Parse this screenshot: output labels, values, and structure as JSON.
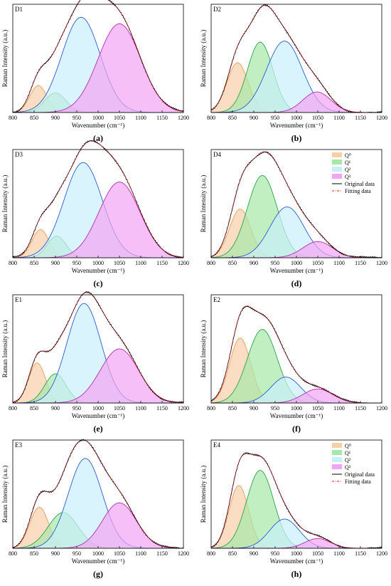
{
  "legend": {
    "items": [
      {
        "key": "q0",
        "label": "Q⁰",
        "fill": "#f8cfa8",
        "stroke": "#e5a05b"
      },
      {
        "key": "q1",
        "label": "Q¹",
        "fill": "#a6e8a8",
        "stroke": "#2ca24a"
      },
      {
        "key": "q2",
        "label": "Q²",
        "fill": "#c9effb",
        "stroke": "#2a5ad0"
      },
      {
        "key": "q3",
        "label": "Q³",
        "fill": "#f4a4f4",
        "stroke": "#b030b0"
      }
    ],
    "original_label": "Original data",
    "fitting_label": "Fitting data"
  },
  "colors": {
    "original": "#000000",
    "fitting": "#d62020"
  },
  "chart_data": [
    {
      "type": "area",
      "name": "D1",
      "caption": "(a)",
      "xlabel": "Wavenumber (cm⁻¹)",
      "ylabel": "Raman Intensity (a.u.)",
      "xlim": [
        800,
        1200
      ],
      "xticks": [
        800,
        850,
        900,
        950,
        1000,
        1050,
        1100,
        1150,
        1200
      ],
      "peaks": [
        {
          "component": "q0",
          "center": 860,
          "width": 20,
          "height": 0.25
        },
        {
          "component": "q1",
          "center": 900,
          "width": 25,
          "height": 0.18
        },
        {
          "component": "q2",
          "center": 960,
          "width": 45,
          "height": 0.88
        },
        {
          "component": "q3",
          "center": 1050,
          "width": 50,
          "height": 0.82
        }
      ]
    },
    {
      "type": "area",
      "name": "D2",
      "caption": "(b)",
      "xlabel": "Wavenumber (cm⁻¹)",
      "ylabel": "Raman Intensity (a.u.)",
      "xlim": [
        800,
        1200
      ],
      "xticks": [
        800,
        850,
        900,
        950,
        1000,
        1050,
        1100,
        1150,
        1200
      ],
      "peaks": [
        {
          "component": "q0",
          "center": 862,
          "width": 25,
          "height": 0.46
        },
        {
          "component": "q1",
          "center": 915,
          "width": 30,
          "height": 0.65
        },
        {
          "component": "q2",
          "center": 972,
          "width": 42,
          "height": 0.66
        },
        {
          "component": "q3",
          "center": 1048,
          "width": 33,
          "height": 0.19
        }
      ]
    },
    {
      "type": "area",
      "name": "D3",
      "caption": "(c)",
      "xlabel": "Wavenumber (cm⁻¹)",
      "ylabel": "Raman Intensity (a.u.)",
      "xlim": [
        800,
        1200
      ],
      "xticks": [
        800,
        850,
        900,
        950,
        1000,
        1050,
        1100,
        1150,
        1200
      ],
      "peaks": [
        {
          "component": "q0",
          "center": 865,
          "width": 20,
          "height": 0.26
        },
        {
          "component": "q1",
          "center": 903,
          "width": 22,
          "height": 0.2
        },
        {
          "component": "q2",
          "center": 965,
          "width": 45,
          "height": 0.88
        },
        {
          "component": "q3",
          "center": 1050,
          "width": 48,
          "height": 0.7
        }
      ]
    },
    {
      "type": "area",
      "name": "D4",
      "caption": "(d)",
      "xlabel": "Wavenumber (cm⁻¹)",
      "ylabel": "Raman Intensity (a.u.)",
      "xlim": [
        800,
        1200
      ],
      "xticks": [
        800,
        850,
        900,
        950,
        1000,
        1050,
        1100,
        1150,
        1200
      ],
      "peaks": [
        {
          "component": "q0",
          "center": 868,
          "width": 25,
          "height": 0.45
        },
        {
          "component": "q1",
          "center": 920,
          "width": 35,
          "height": 0.76
        },
        {
          "component": "q2",
          "center": 978,
          "width": 40,
          "height": 0.47
        },
        {
          "component": "q3",
          "center": 1050,
          "width": 35,
          "height": 0.15
        }
      ]
    },
    {
      "type": "area",
      "name": "E1",
      "caption": "(e)",
      "xlabel": "Wavenumber (cm⁻¹)",
      "ylabel": "Raman Intensity (a.u.)",
      "xlim": [
        800,
        1200
      ],
      "xticks": [
        800,
        850,
        900,
        950,
        1000,
        1050,
        1100,
        1150,
        1200
      ],
      "peaks": [
        {
          "component": "q0",
          "center": 857,
          "width": 20,
          "height": 0.37
        },
        {
          "component": "q1",
          "center": 900,
          "width": 25,
          "height": 0.27
        },
        {
          "component": "q2",
          "center": 967,
          "width": 40,
          "height": 0.92
        },
        {
          "component": "q3",
          "center": 1050,
          "width": 45,
          "height": 0.5
        }
      ]
    },
    {
      "type": "area",
      "name": "E2",
      "caption": "(f)",
      "xlabel": "Wavenumber (cm⁻¹)",
      "ylabel": "Raman Intensity (a.u.)",
      "xlim": [
        800,
        1200
      ],
      "xticks": [
        800,
        850,
        900,
        950,
        1000,
        1050,
        1100,
        1150,
        1200
      ],
      "peaks": [
        {
          "component": "q0",
          "center": 868,
          "width": 25,
          "height": 0.6
        },
        {
          "component": "q1",
          "center": 920,
          "width": 35,
          "height": 0.68
        },
        {
          "component": "q2",
          "center": 975,
          "width": 35,
          "height": 0.24
        },
        {
          "component": "q3",
          "center": 1050,
          "width": 35,
          "height": 0.13
        }
      ]
    },
    {
      "type": "area",
      "name": "E3",
      "caption": "(g)",
      "xlabel": "Wavenumber (cm⁻¹)",
      "ylabel": "Raman Intensity (a.u.)",
      "xlim": [
        800,
        1200
      ],
      "xticks": [
        800,
        850,
        900,
        950,
        1000,
        1050,
        1100,
        1150,
        1200
      ],
      "peaks": [
        {
          "component": "q0",
          "center": 862,
          "width": 22,
          "height": 0.38
        },
        {
          "component": "q1",
          "center": 918,
          "width": 35,
          "height": 0.33
        },
        {
          "component": "q2",
          "center": 970,
          "width": 40,
          "height": 0.83
        },
        {
          "component": "q3",
          "center": 1050,
          "width": 40,
          "height": 0.42
        }
      ]
    },
    {
      "type": "area",
      "name": "E4",
      "caption": "(h)",
      "xlabel": "Wavenumber (cm⁻¹)",
      "ylabel": "Raman Intensity (a.u.)",
      "xlim": [
        800,
        1200
      ],
      "xticks": [
        800,
        850,
        900,
        950,
        1000,
        1050,
        1100,
        1150,
        1200
      ],
      "peaks": [
        {
          "component": "q0",
          "center": 865,
          "width": 23,
          "height": 0.58
        },
        {
          "component": "q1",
          "center": 915,
          "width": 32,
          "height": 0.72
        },
        {
          "component": "q2",
          "center": 972,
          "width": 35,
          "height": 0.27
        },
        {
          "component": "q3",
          "center": 1050,
          "width": 30,
          "height": 0.09
        }
      ]
    }
  ]
}
